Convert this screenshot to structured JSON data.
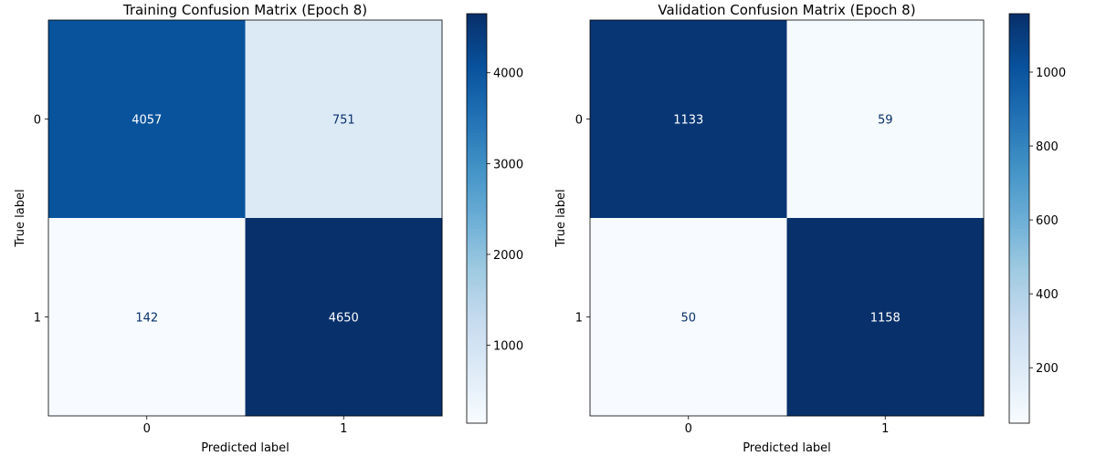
{
  "chart_data": [
    {
      "type": "heatmap",
      "title": "Training Confusion Matrix (Epoch 8)",
      "xlabel": "Predicted label",
      "ylabel": "True label",
      "x_categories": [
        "0",
        "1"
      ],
      "y_categories": [
        "0",
        "1"
      ],
      "values": [
        [
          4057,
          751
        ],
        [
          142,
          4650
        ]
      ],
      "colormap": "Blues",
      "colorbar": {
        "range": [
          142,
          4650
        ],
        "ticks": [
          1000,
          2000,
          3000,
          4000
        ],
        "tick_labels": [
          "1000",
          "2000",
          "3000",
          "4000"
        ]
      },
      "grid": false
    },
    {
      "type": "heatmap",
      "title": "Validation Confusion Matrix (Epoch 8)",
      "xlabel": "Predicted label",
      "ylabel": "True label",
      "x_categories": [
        "0",
        "1"
      ],
      "y_categories": [
        "0",
        "1"
      ],
      "values": [
        [
          1133,
          59
        ],
        [
          50,
          1158
        ]
      ],
      "colormap": "Blues",
      "colorbar": {
        "range": [
          50,
          1158
        ],
        "ticks": [
          200,
          400,
          600,
          800,
          1000
        ],
        "tick_labels": [
          "200",
          "400",
          "600",
          "800",
          "1000"
        ]
      },
      "grid": false
    }
  ],
  "colors": {
    "low": "#f7fbff",
    "high": "#08306b",
    "text_on_light": "#08306b",
    "text_on_dark": "#ffffff"
  }
}
